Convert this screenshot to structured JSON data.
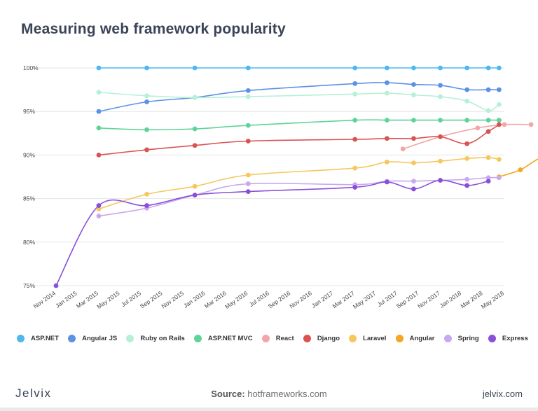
{
  "header": {
    "title": "Measuring web framework popularity"
  },
  "footer": {
    "brand_left": "Jelvix",
    "source_label": "Source:",
    "source_value": "hotframeworks.com",
    "brand_right": "jelvix.com"
  },
  "chart_data": {
    "type": "line",
    "title": "Measuring web framework popularity",
    "xlabel": "",
    "ylabel": "",
    "y_ticks": [
      "100%",
      "95%",
      "90%",
      "85%",
      "80%",
      "75%"
    ],
    "y_tick_values": [
      100,
      95,
      90,
      85,
      80,
      75
    ],
    "ylim": [
      75,
      100
    ],
    "x_ticks": [
      "Nov 2014",
      "Jan 2015",
      "Mar 2015",
      "May 2015",
      "Jul 2015",
      "Sep 2015",
      "Nov 2015",
      "Jan 2016",
      "Mar 2016",
      "May 2016",
      "Jul 2016",
      "Sep 2016",
      "Nov 2016",
      "Jan 2017",
      "Mar 2017",
      "May 2017",
      "Jul 2017",
      "Sep 2017",
      "Nov 2017",
      "Jan 2018",
      "Mar 2018",
      "May 2018"
    ],
    "x_tick_months": [
      0,
      2,
      4,
      6,
      8,
      10,
      12,
      14,
      16,
      18,
      20,
      22,
      24,
      26,
      28,
      30,
      32,
      34,
      36,
      38,
      40,
      42
    ],
    "x_unit": "months since Nov 2014",
    "grid": "horizontal",
    "legend_position": "bottom",
    "series": [
      {
        "name": "ASP.NET",
        "color": "#4fb8ec",
        "x": [
          4,
          8.5,
          13,
          18,
          28,
          31,
          33.5,
          36,
          38.5,
          40.5,
          41.5
        ],
        "y": [
          100,
          100,
          100,
          100,
          100,
          100,
          100,
          100,
          100,
          100,
          100
        ]
      },
      {
        "name": "Angular JS",
        "color": "#5b92e5",
        "x": [
          4,
          8.5,
          13,
          18,
          28,
          31,
          33.5,
          36,
          38.5,
          40.5,
          41.5
        ],
        "y": [
          95,
          96.1,
          96.6,
          97.4,
          98.2,
          98.3,
          98.1,
          98.0,
          97.5,
          97.5,
          97.5
        ]
      },
      {
        "name": "Ruby on Rails",
        "color": "#b6f0d6",
        "x": [
          4,
          8.5,
          13,
          18,
          28,
          31,
          33.5,
          36,
          38.5,
          40.5,
          41.5
        ],
        "y": [
          97.2,
          96.8,
          96.6,
          96.7,
          97.0,
          97.1,
          96.9,
          96.7,
          96.2,
          95.1,
          95.8
        ]
      },
      {
        "name": "ASP.NET MVC",
        "color": "#5fd39a",
        "x": [
          4,
          8.5,
          13,
          18,
          28,
          31,
          33.5,
          36,
          38.5,
          40.5,
          41.5
        ],
        "y": [
          93.1,
          92.9,
          93.0,
          93.4,
          94.0,
          94.0,
          94.0,
          94.0,
          94.0,
          94.0,
          94.0
        ]
      },
      {
        "name": "React",
        "color": "#f4a5a7",
        "x": [
          32.5,
          36,
          39.5,
          42,
          44.5
        ],
        "y": [
          90.7,
          92.1,
          93.1,
          93.5,
          93.5
        ]
      },
      {
        "name": "Django",
        "color": "#d9534f",
        "x": [
          4,
          8.5,
          13,
          18,
          28,
          31,
          33.5,
          36,
          38.5,
          40.5,
          41.5
        ],
        "y": [
          90.0,
          90.6,
          91.1,
          91.6,
          91.8,
          91.9,
          91.9,
          92.1,
          91.3,
          92.7,
          93.5
        ]
      },
      {
        "name": "Laravel",
        "color": "#f5c75c",
        "x": [
          4,
          8.5,
          13,
          18,
          28,
          31,
          33.5,
          36,
          38.5,
          40.5,
          41.5
        ],
        "y": [
          83.8,
          85.5,
          86.4,
          87.7,
          88.5,
          89.2,
          89.1,
          89.3,
          89.6,
          89.7,
          89.5
        ]
      },
      {
        "name": "Angular",
        "color": "#f5a623",
        "x": [
          41.5,
          43.5,
          45.5,
          47.5
        ],
        "y": [
          87.5,
          88.3,
          89.7,
          89.6
        ]
      },
      {
        "name": "Spring",
        "color": "#c9a8ef",
        "x": [
          4,
          8.5,
          13,
          18,
          28,
          31,
          33.5,
          36,
          38.5,
          40.5,
          41.5
        ],
        "y": [
          83.0,
          83.9,
          85.4,
          86.7,
          86.6,
          87.0,
          87.0,
          87.1,
          87.2,
          87.4,
          87.4
        ]
      },
      {
        "name": "Express",
        "color": "#8a4fd9",
        "x": [
          0,
          4,
          8.5,
          13,
          18,
          28,
          31,
          33.5,
          36,
          38.5,
          40.5
        ],
        "y": [
          75,
          84.2,
          84.2,
          85.4,
          85.8,
          86.3,
          86.9,
          86.1,
          87.1,
          86.5,
          87.0
        ]
      }
    ]
  }
}
